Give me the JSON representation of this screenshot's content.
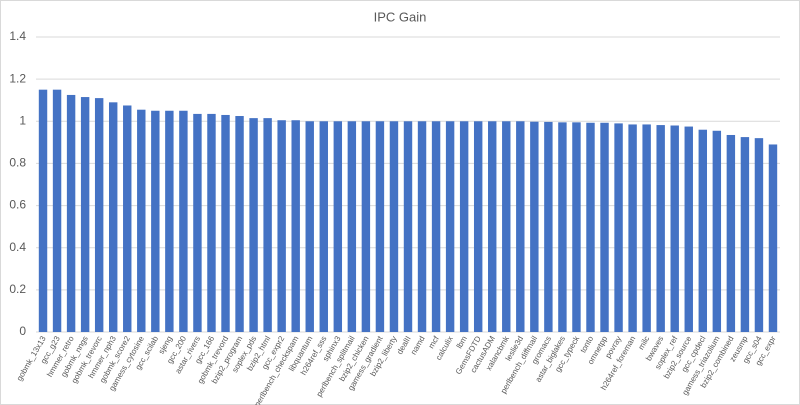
{
  "chart_data": {
    "type": "bar",
    "title": "IPC Gain",
    "categories": [
      "gobmk_13x13",
      "gcc_g23",
      "hmmer_retro",
      "gobmk_nngs",
      "gobmk_trevorc",
      "hmmer_nph3",
      "gobmk_score2",
      "gamess_cytosine",
      "gcc_scilab",
      "sjeng",
      "gcc_200",
      "astar_rivers",
      "gcc_166",
      "gobmk_trevord",
      "bzip2_program",
      "soplex_pds",
      "bzip2_html",
      "gcc_expr2",
      "perlbench_checkspam",
      "libquantum",
      "h264ref_sss",
      "sphinx3",
      "perlbench_splitmail",
      "bzip2_chicken",
      "gamess_gradient",
      "bzip2_liberty",
      "dealII",
      "namd",
      "mcf",
      "calculix",
      "lbm",
      "GemsFDTD",
      "cactusADM",
      "xalancbmk",
      "leslie3d",
      "perlbench_diffmail",
      "gromacs",
      "astar_biglakes",
      "gcc_typeck",
      "tonto",
      "omnetpp",
      "povray",
      "h264ref_foreman",
      "milc",
      "bwaves",
      "soplex_ref",
      "bzip2_source",
      "gcc_cpdecl",
      "gamess_triazolium",
      "bzip2_combined",
      "zeusmp",
      "gcc_s04",
      "gcc_expr"
    ],
    "values": [
      1.15,
      1.15,
      1.125,
      1.115,
      1.11,
      1.09,
      1.075,
      1.055,
      1.05,
      1.05,
      1.05,
      1.035,
      1.035,
      1.03,
      1.025,
      1.015,
      1.015,
      1.005,
      1.005,
      1.0,
      1.0,
      1.0,
      1.0,
      1.0,
      1.0,
      1.0,
      1.0,
      1.0,
      1.0,
      1.0,
      1.0,
      1.0,
      1.0,
      1.0,
      1.0,
      0.998,
      0.997,
      0.995,
      0.995,
      0.993,
      0.993,
      0.99,
      0.985,
      0.985,
      0.982,
      0.98,
      0.975,
      0.96,
      0.955,
      0.935,
      0.925,
      0.92,
      0.89
    ],
    "color": "#4472c4",
    "ylim": [
      0,
      1.4
    ],
    "yticks": [
      0,
      0.2,
      0.4,
      0.6,
      0.8,
      1,
      1.2,
      1.4
    ],
    "grid": true
  }
}
